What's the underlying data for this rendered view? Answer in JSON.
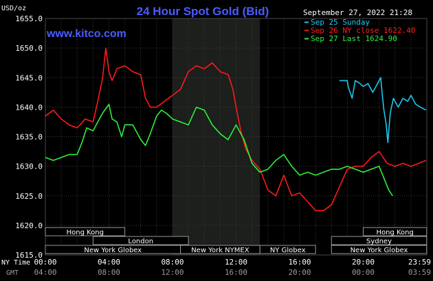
{
  "chart_data": {
    "type": "line",
    "title": "24 Hour Spot Gold (Bid)",
    "website": "www.kitco.com",
    "timestamp": "September 27, 2022 21:28",
    "ylabel": "USD/oz",
    "ylim": [
      1615.0,
      1655.0
    ],
    "yticks": [
      "1615.0",
      "1620.0",
      "1625.0",
      "1630.0",
      "1635.0",
      "1640.0",
      "1645.0",
      "1650.0",
      "1655.0"
    ],
    "xlim": [
      0,
      24
    ],
    "x_ticks_ny": [
      "00:00",
      "04:00",
      "08:00",
      "12:00",
      "16:00",
      "20:00",
      "23:59"
    ],
    "x_ticks_gmt": [
      "04:00",
      "08:00",
      "12:00",
      "16:00",
      "20:00",
      "00:00",
      "03:59"
    ],
    "x_row_label_ny": "NY Time",
    "x_row_label_gmt": "GMT",
    "grid": true,
    "legend_position": "top-right",
    "shaded_region": [
      8.0,
      13.5
    ],
    "series": [
      {
        "name": "Sep 25 Sunday",
        "legend": "Sep 25 Sunday",
        "color": "#1ec8f0",
        "x": [
          18.5,
          19.0,
          19.05,
          19.3,
          19.5,
          19.8,
          20.0,
          20.3,
          20.6,
          20.9,
          21.1,
          21.2,
          21.3,
          21.45,
          21.55,
          21.7,
          21.9,
          22.2,
          22.5,
          22.8,
          23.0,
          23.3,
          23.6,
          23.95
        ],
        "values": [
          1644.5,
          1644.5,
          1643.5,
          1641.5,
          1644.5,
          1644.0,
          1643.5,
          1644.0,
          1642.5,
          1644.0,
          1645.0,
          1642.0,
          1639.5,
          1637.0,
          1634.0,
          1639.0,
          1641.5,
          1640.0,
          1641.5,
          1641.0,
          1642.0,
          1640.5,
          1640.0,
          1639.5
        ]
      },
      {
        "name": "Sep 26 NY close 1622.40",
        "legend": "Sep 26 NY close 1622.40",
        "color": "#ff1a1a",
        "x": [
          0.0,
          0.5,
          1.0,
          1.5,
          2.0,
          2.5,
          3.0,
          3.3,
          3.6,
          3.8,
          4.0,
          4.2,
          4.5,
          5.0,
          5.5,
          6.0,
          6.3,
          6.6,
          7.0,
          7.5,
          8.0,
          8.5,
          9.0,
          9.5,
          10.0,
          10.5,
          11.0,
          11.5,
          11.8,
          12.0,
          12.3,
          12.6,
          13.0,
          13.5,
          14.0,
          14.5,
          15.0,
          15.5,
          16.0,
          16.5,
          17.0,
          17.5,
          18.0,
          18.5,
          19.0,
          19.5,
          20.0,
          20.5,
          21.0,
          21.5,
          22.0,
          22.5,
          23.0,
          23.5,
          23.95
        ],
        "values": [
          1638.5,
          1639.5,
          1638.0,
          1637.0,
          1636.5,
          1638.0,
          1637.5,
          1641.0,
          1645.0,
          1650.0,
          1646.0,
          1644.5,
          1646.5,
          1647.0,
          1646.0,
          1645.5,
          1641.5,
          1640.0,
          1640.0,
          1641.0,
          1642.0,
          1643.0,
          1646.0,
          1647.0,
          1646.5,
          1647.5,
          1646.0,
          1645.5,
          1643.0,
          1640.0,
          1636.0,
          1633.0,
          1631.0,
          1629.5,
          1626.0,
          1625.0,
          1628.5,
          1625.0,
          1625.5,
          1624.0,
          1622.5,
          1622.5,
          1623.5,
          1626.5,
          1629.5,
          1630.0,
          1630.0,
          1631.5,
          1632.5,
          1630.5,
          1630.0,
          1630.5,
          1630.0,
          1630.5,
          1631.0
        ]
      },
      {
        "name": "Sep 27 Last 1624.90",
        "legend": "Sep 27 Last 1624.90",
        "color": "#2ef03c",
        "x": [
          0.0,
          0.5,
          1.0,
          1.5,
          2.0,
          2.3,
          2.6,
          3.0,
          3.3,
          3.6,
          4.0,
          4.2,
          4.5,
          4.8,
          5.0,
          5.5,
          6.0,
          6.3,
          6.6,
          7.0,
          7.3,
          7.6,
          8.0,
          8.5,
          9.0,
          9.5,
          10.0,
          10.5,
          11.0,
          11.5,
          12.0,
          12.5,
          13.0,
          13.5,
          14.0,
          14.5,
          15.0,
          15.5,
          16.0,
          16.5,
          17.0,
          17.5,
          18.0,
          18.5,
          19.0,
          19.5,
          20.0,
          20.5,
          21.0,
          21.3,
          21.6,
          21.85
        ],
        "values": [
          1631.5,
          1631.0,
          1631.5,
          1632.0,
          1632.0,
          1634.0,
          1636.5,
          1636.0,
          1637.5,
          1639.0,
          1640.5,
          1638.0,
          1637.5,
          1635.0,
          1637.0,
          1637.0,
          1634.5,
          1633.5,
          1635.5,
          1638.5,
          1639.5,
          1639.0,
          1638.0,
          1637.5,
          1637.0,
          1640.0,
          1639.5,
          1637.0,
          1635.5,
          1634.5,
          1637.0,
          1634.5,
          1630.5,
          1629.0,
          1629.5,
          1631.0,
          1632.0,
          1630.0,
          1628.5,
          1629.0,
          1628.5,
          1629.0,
          1629.5,
          1629.5,
          1630.0,
          1629.5,
          1629.0,
          1629.5,
          1630.0,
          1628.0,
          1626.0,
          1625.0
        ]
      }
    ],
    "sessions": [
      {
        "label": "Hong Kong",
        "start": 0.0,
        "end": 5.0,
        "row": 0
      },
      {
        "label": "London",
        "start": 3.0,
        "end": 9.0,
        "row": 1
      },
      {
        "label": "New York Globex",
        "start": 0.0,
        "end": 8.5,
        "row": 2
      },
      {
        "label": "New York NYMEX",
        "start": 8.5,
        "end": 13.5,
        "row": 2
      },
      {
        "label": "NY Globex",
        "start": 13.5,
        "end": 17.0,
        "row": 2
      },
      {
        "label": "Hong Kong",
        "start": 20.0,
        "end": 23.99,
        "row": 0
      },
      {
        "label": "Sydney",
        "start": 18.0,
        "end": 23.99,
        "row": 1
      },
      {
        "label": "New York Globex",
        "start": 18.0,
        "end": 23.99,
        "row": 2
      }
    ]
  }
}
